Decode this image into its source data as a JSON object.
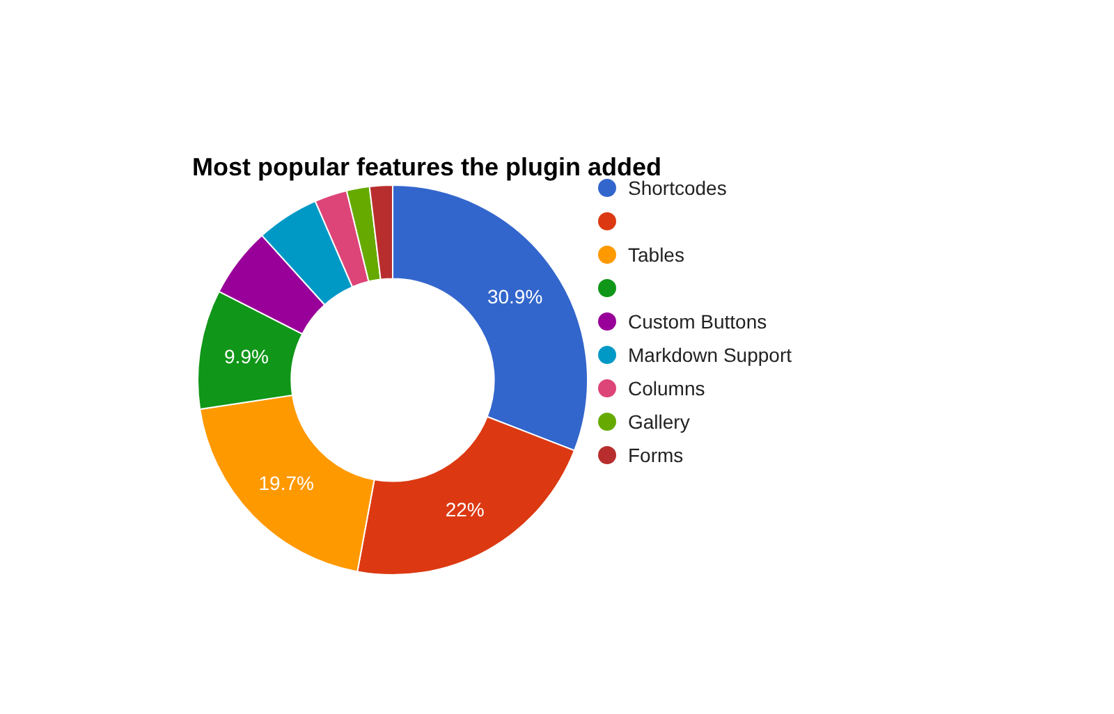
{
  "chart_data": {
    "type": "donut",
    "title": "Most popular features the plugin added",
    "categories": [
      "Shortcodes",
      null,
      "Tables",
      null,
      "Custom Buttons",
      "Markdown Support",
      "Columns",
      "Gallery",
      "Forms"
    ],
    "values": [
      30.9,
      22,
      19.7,
      9.9,
      5.8,
      5.2,
      2.7,
      1.9,
      1.9
    ],
    "colors": [
      "#3366cc",
      "#dc3912",
      "#ff9900",
      "#109618",
      "#990099",
      "#0099c6",
      "#dd4477",
      "#66aa00",
      "#b82e2e"
    ],
    "value_labels": [
      "30.9%",
      "22%",
      "19.7%",
      "9.9%",
      null,
      null,
      null,
      null,
      null
    ],
    "legend": "right"
  }
}
